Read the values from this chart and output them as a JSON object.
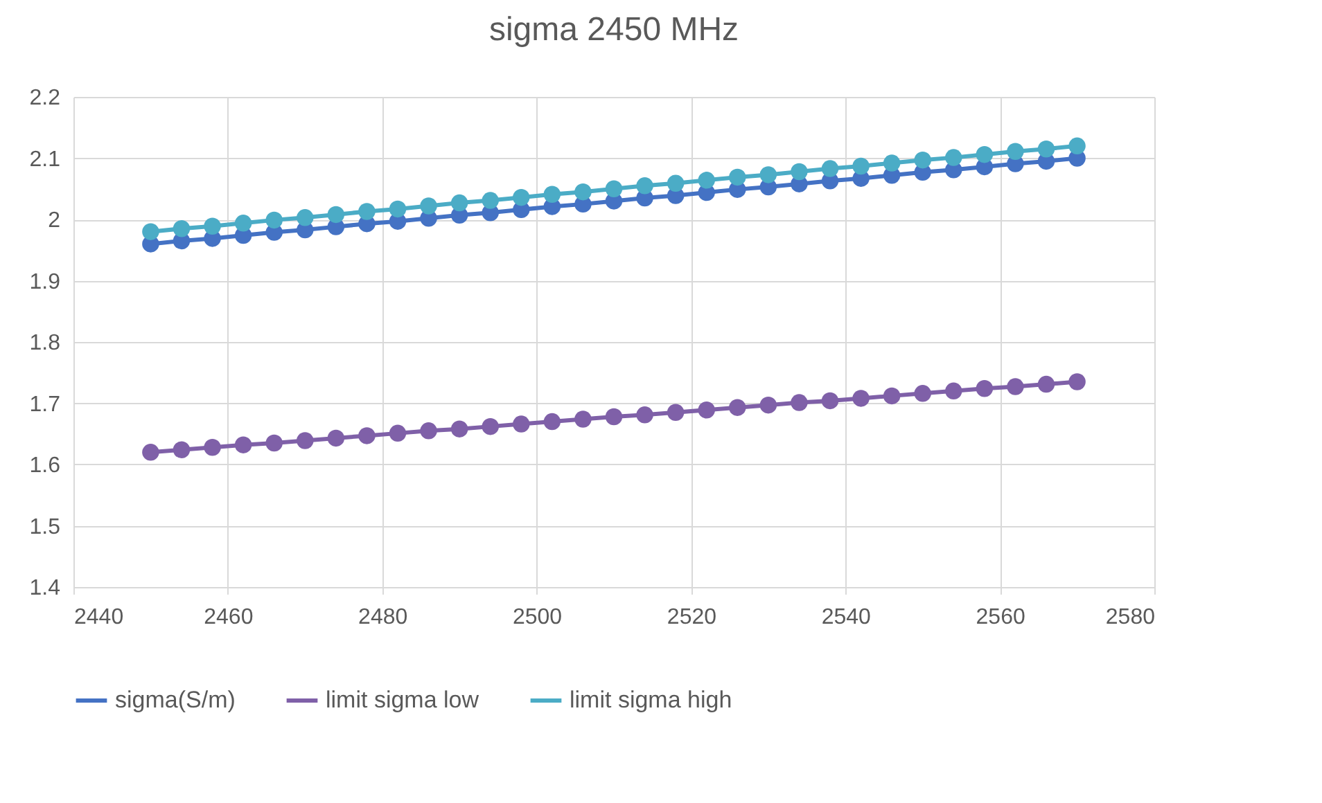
{
  "chart_data": {
    "type": "line",
    "title": "sigma 2450 MHz",
    "x": [
      2450,
      2454,
      2458,
      2462,
      2466,
      2470,
      2474,
      2478,
      2482,
      2486,
      2490,
      2494,
      2498,
      2502,
      2506,
      2510,
      2514,
      2518,
      2522,
      2526,
      2530,
      2534,
      2538,
      2542,
      2546,
      2550,
      2554,
      2558,
      2562,
      2566,
      2570
    ],
    "series": [
      {
        "name": "sigma(S/m)",
        "color": "#4472c4",
        "values": [
          1.96,
          1.965,
          1.969,
          1.974,
          1.979,
          1.983,
          1.988,
          1.993,
          1.997,
          2.002,
          2.007,
          2.011,
          2.016,
          2.021,
          2.025,
          2.03,
          2.035,
          2.039,
          2.044,
          2.049,
          2.053,
          2.058,
          2.063,
          2.067,
          2.072,
          2.077,
          2.081,
          2.086,
          2.091,
          2.095,
          2.1
        ]
      },
      {
        "name": "limit sigma low",
        "color": "#7f60a8",
        "values": [
          1.62,
          1.624,
          1.628,
          1.632,
          1.635,
          1.639,
          1.643,
          1.647,
          1.651,
          1.655,
          1.658,
          1.662,
          1.666,
          1.67,
          1.674,
          1.678,
          1.681,
          1.685,
          1.689,
          1.693,
          1.697,
          1.701,
          1.704,
          1.708,
          1.712,
          1.716,
          1.72,
          1.724,
          1.727,
          1.731,
          1.735
        ]
      },
      {
        "name": "limit sigma high",
        "color": "#4bacc6",
        "values": [
          1.98,
          1.985,
          1.989,
          1.994,
          1.999,
          2.003,
          2.008,
          2.013,
          2.017,
          2.022,
          2.027,
          2.031,
          2.036,
          2.041,
          2.045,
          2.05,
          2.055,
          2.059,
          2.064,
          2.069,
          2.073,
          2.078,
          2.083,
          2.087,
          2.092,
          2.097,
          2.101,
          2.106,
          2.111,
          2.115,
          2.12
        ]
      }
    ],
    "xlim": [
      2440,
      2580
    ],
    "xticks": [
      2440,
      2460,
      2480,
      2500,
      2520,
      2540,
      2560,
      2580
    ],
    "ylim": [
      1.4,
      2.2
    ],
    "yticks": [
      1.4,
      1.5,
      1.6,
      1.7,
      1.8,
      1.9,
      2,
      2.1,
      2.2
    ],
    "grid": true,
    "legend": "bottom",
    "marker": "circle",
    "line_style": "solid"
  }
}
